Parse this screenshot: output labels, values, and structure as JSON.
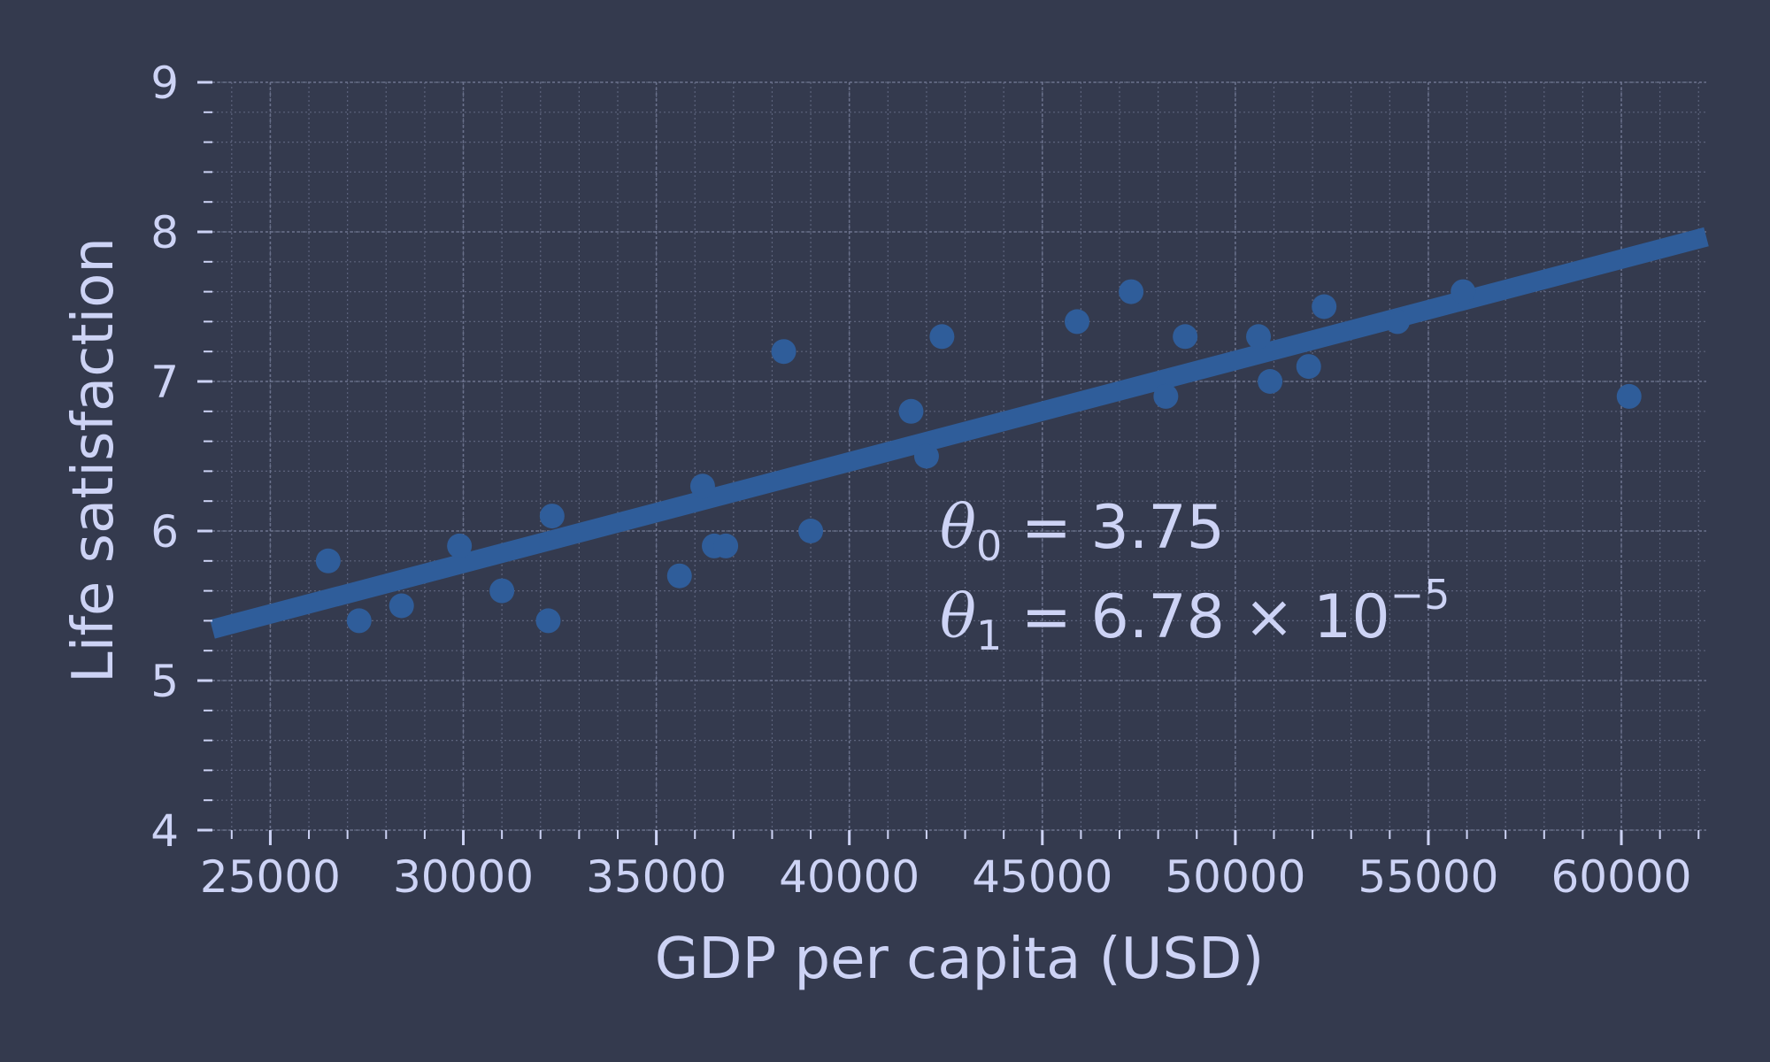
{
  "chart_data": {
    "type": "scatter",
    "title": "",
    "xlabel": "GDP per capita (USD)",
    "ylabel": "Life satisfaction",
    "xlim": [
      23500,
      62200
    ],
    "ylim": [
      4,
      9
    ],
    "xticks": [
      25000,
      30000,
      35000,
      40000,
      45000,
      50000,
      55000,
      60000
    ],
    "yticks": [
      4,
      5,
      6,
      7,
      8,
      9
    ],
    "grid": true,
    "colors": {
      "background": "#343a4e",
      "marker": "#2f5d9a",
      "line": "#2f5d9a",
      "text": "#cdd3f5",
      "grid": "#6e7590"
    },
    "points": [
      {
        "x": 26500,
        "y": 5.8
      },
      {
        "x": 27300,
        "y": 5.4
      },
      {
        "x": 28400,
        "y": 5.5
      },
      {
        "x": 29900,
        "y": 5.9
      },
      {
        "x": 31000,
        "y": 5.6
      },
      {
        "x": 32200,
        "y": 5.4
      },
      {
        "x": 32300,
        "y": 6.1
      },
      {
        "x": 35600,
        "y": 5.7
      },
      {
        "x": 36200,
        "y": 6.3
      },
      {
        "x": 36500,
        "y": 5.9
      },
      {
        "x": 36800,
        "y": 5.9
      },
      {
        "x": 38300,
        "y": 7.2
      },
      {
        "x": 39000,
        "y": 6.0
      },
      {
        "x": 41600,
        "y": 6.8
      },
      {
        "x": 42000,
        "y": 6.5
      },
      {
        "x": 42400,
        "y": 7.3
      },
      {
        "x": 45900,
        "y": 7.4
      },
      {
        "x": 47300,
        "y": 7.6
      },
      {
        "x": 48200,
        "y": 6.9
      },
      {
        "x": 48700,
        "y": 7.3
      },
      {
        "x": 50600,
        "y": 7.3
      },
      {
        "x": 50900,
        "y": 7.0
      },
      {
        "x": 51900,
        "y": 7.1
      },
      {
        "x": 52300,
        "y": 7.5
      },
      {
        "x": 54200,
        "y": 7.4
      },
      {
        "x": 55900,
        "y": 7.6
      },
      {
        "x": 60200,
        "y": 6.9
      }
    ],
    "fit_line": {
      "theta0": 3.75,
      "theta1": 6.78e-05
    },
    "annotations": {
      "theta0_symbol": "θ",
      "theta0_sub": "0",
      "theta0_text": " = 3.75",
      "theta1_symbol": "θ",
      "theta1_sub": "1",
      "theta1_text": " = 6.78 × 10",
      "theta1_exp": "−5"
    }
  }
}
